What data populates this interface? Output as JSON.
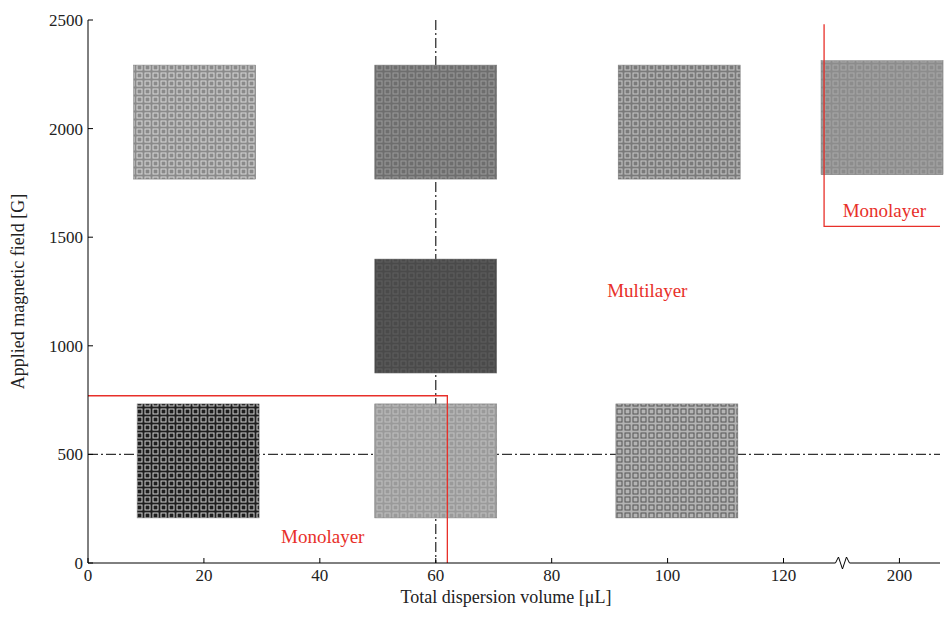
{
  "chart_data": {
    "type": "scatter",
    "marker": "square",
    "x_label": "Total dispersion volume [μL]",
    "y_label": "Applied magnetic field [G]",
    "xlim": [
      0,
      207
    ],
    "ylim": [
      0,
      2500
    ],
    "xticks": [
      0,
      20,
      40,
      60,
      80,
      100,
      120,
      200
    ],
    "yticks": [
      0,
      500,
      1000,
      1500,
      2000,
      2500
    ],
    "grid": false,
    "points": {
      "x": [
        18.4,
        60,
        102,
        197,
        60,
        19,
        60,
        101.6
      ],
      "y": [
        2030,
        2030,
        2030,
        2050,
        1137,
        470,
        470,
        470
      ]
    },
    "reference_lines": {
      "x": [
        60
      ],
      "y": [
        500
      ]
    },
    "boundaries": [
      {
        "x": [
          0,
          62,
          62
        ],
        "y": [
          770,
          770,
          0
        ],
        "color": "#e8302a"
      },
      {
        "x": [
          127,
          127,
          207
        ],
        "y": [
          2480,
          1550,
          1550
        ],
        "color": "#e8302a"
      }
    ],
    "annotations": [
      {
        "text": "Monolayer",
        "x": 40.5,
        "y": 120,
        "color": "#e8302a"
      },
      {
        "text": "Multilayer",
        "x": 96.5,
        "y": 1252,
        "color": "#e8302a"
      },
      {
        "text": "Monolayer",
        "x": 197.4,
        "y": 1620,
        "color": "#e8302a"
      }
    ]
  }
}
